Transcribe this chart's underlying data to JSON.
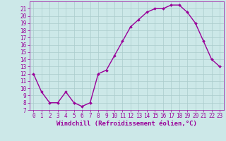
{
  "x": [
    0,
    1,
    2,
    3,
    4,
    5,
    6,
    7,
    8,
    9,
    10,
    11,
    12,
    13,
    14,
    15,
    16,
    17,
    18,
    19,
    20,
    21,
    22,
    23
  ],
  "y": [
    12,
    9.5,
    8,
    8,
    9.5,
    8,
    7.5,
    8,
    12,
    12.5,
    14.5,
    16.5,
    18.5,
    19.5,
    20.5,
    21,
    21,
    21.5,
    21.5,
    20.5,
    19,
    16.5,
    14,
    13
  ],
  "line_color": "#990099",
  "marker": "D",
  "marker_size": 2.0,
  "linewidth": 1.0,
  "background_color": "#cce8e8",
  "grid_color": "#aacccc",
  "xlabel": "Windchill (Refroidissement éolien,°C)",
  "xlabel_fontsize": 6.5,
  "xlabel_color": "#990099",
  "tick_color": "#990099",
  "tick_fontsize": 5.5,
  "ylim": [
    7,
    22
  ],
  "xlim": [
    -0.5,
    23.5
  ],
  "yticks": [
    7,
    8,
    9,
    10,
    11,
    12,
    13,
    14,
    15,
    16,
    17,
    18,
    19,
    20,
    21
  ],
  "xticks": [
    0,
    1,
    2,
    3,
    4,
    5,
    6,
    7,
    8,
    9,
    10,
    11,
    12,
    13,
    14,
    15,
    16,
    17,
    18,
    19,
    20,
    21,
    22,
    23
  ]
}
